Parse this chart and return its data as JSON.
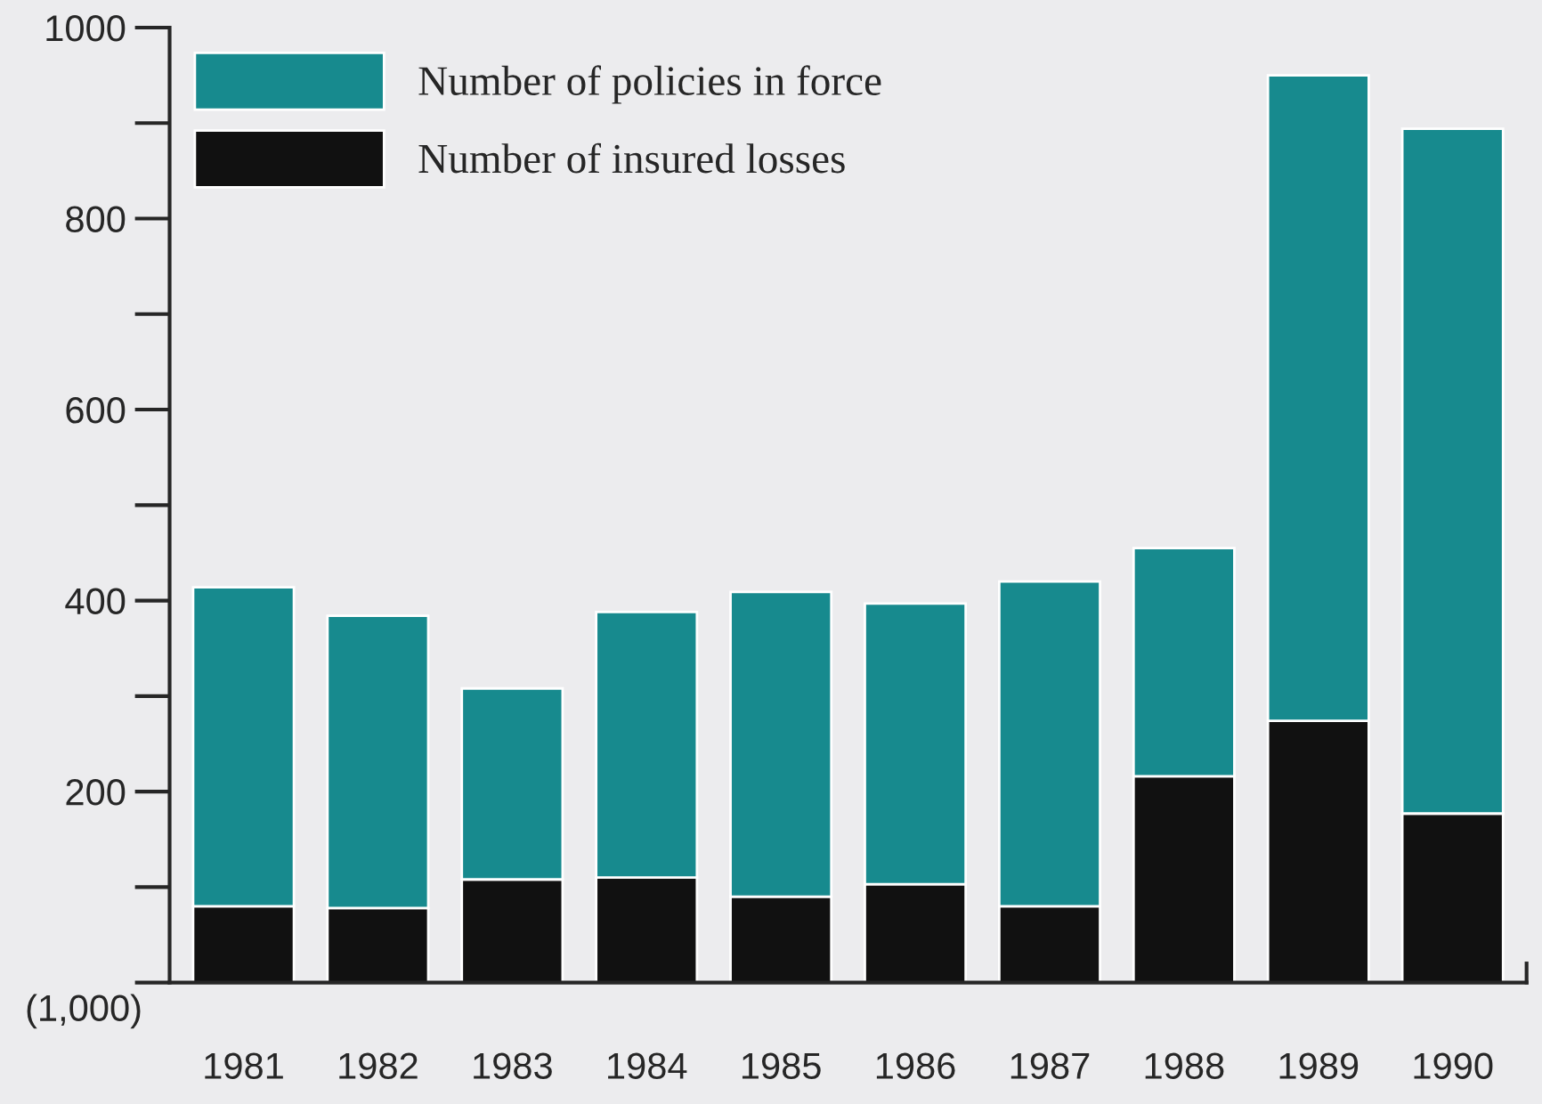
{
  "chart_data": {
    "type": "bar",
    "stacked": true,
    "categories": [
      "1981",
      "1982",
      "1983",
      "1984",
      "1985",
      "1986",
      "1987",
      "1988",
      "1989",
      "1990"
    ],
    "series": [
      {
        "name": "Number of insured losses",
        "color": "#111111",
        "values": [
          80,
          78,
          108,
          110,
          90,
          103,
          80,
          216,
          274,
          177
        ]
      },
      {
        "name": "Number of policies in force",
        "color": "#178a8e",
        "values": [
          334,
          306,
          200,
          278,
          319,
          294,
          340,
          239,
          676,
          717
        ]
      }
    ],
    "ylim": [
      0,
      1000
    ],
    "yticks": [
      200,
      400,
      600,
      800,
      1000
    ],
    "ylabel": "(1,000)",
    "grid": false,
    "legend": "top left"
  }
}
